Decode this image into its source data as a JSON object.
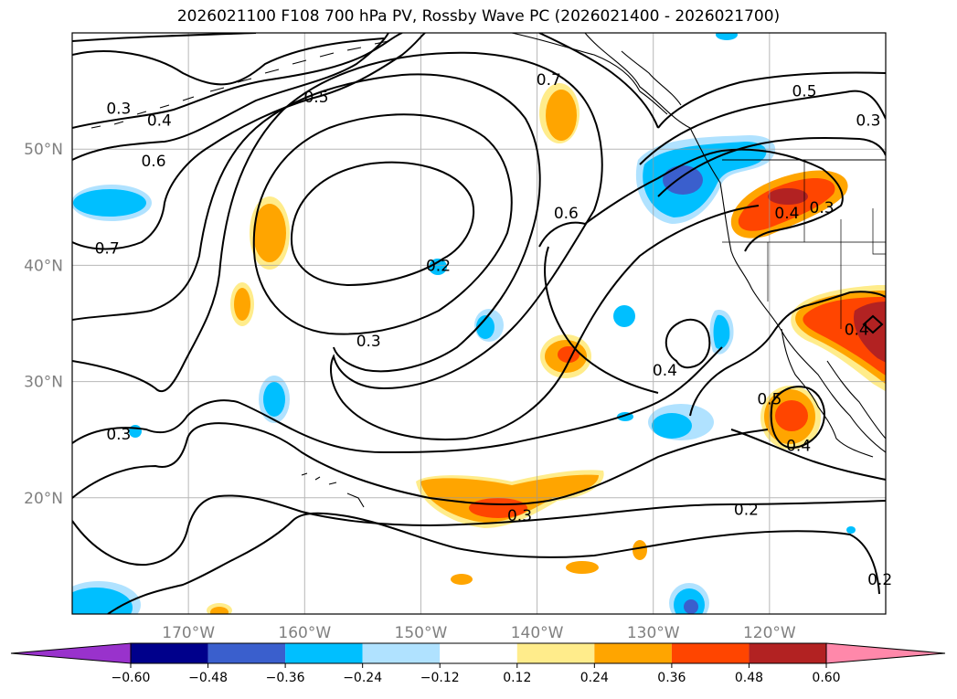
{
  "chart_data": {
    "type": "map",
    "title": "2026021100 F108 700 hPa PV, Rossby Wave PC (2026021400 - 2026021700)",
    "lon_range": [
      -180,
      -110
    ],
    "lat_range": [
      10,
      60
    ],
    "lon_ticks": [
      -170,
      -160,
      -150,
      -140,
      -130,
      -120
    ],
    "lon_tick_labels": [
      "170°W",
      "160°W",
      "150°W",
      "140°W",
      "130°W",
      "120°W"
    ],
    "lat_ticks": [
      20,
      30,
      40,
      50
    ],
    "lat_tick_labels": [
      "20°N",
      "30°N",
      "40°N",
      "50°N"
    ],
    "contour_labels": [
      {
        "text": "0.3",
        "lon": -176.0,
        "lat": 53.5
      },
      {
        "text": "0.4",
        "lon": -172.5,
        "lat": 52.5
      },
      {
        "text": "0.5",
        "lon": -159.0,
        "lat": 54.5
      },
      {
        "text": "0.6",
        "lon": -173.0,
        "lat": 49.0
      },
      {
        "text": "0.7",
        "lon": -177.0,
        "lat": 41.5
      },
      {
        "text": "0.7",
        "lon": -139.0,
        "lat": 56.0
      },
      {
        "text": "0.5",
        "lon": -117.0,
        "lat": 55.0
      },
      {
        "text": "0.3",
        "lon": -111.5,
        "lat": 52.5
      },
      {
        "text": "0.6",
        "lon": -137.5,
        "lat": 44.5
      },
      {
        "text": "0.4",
        "lon": -118.5,
        "lat": 44.5
      },
      {
        "text": "0.3",
        "lon": -115.5,
        "lat": 45.0
      },
      {
        "text": "0.2",
        "lon": -148.5,
        "lat": 40.0
      },
      {
        "text": "0.3",
        "lon": -154.5,
        "lat": 33.5
      },
      {
        "text": "0.4",
        "lon": -129.0,
        "lat": 31.0
      },
      {
        "text": "0.4",
        "lon": -112.5,
        "lat": 34.5
      },
      {
        "text": "0.5",
        "lon": -120.0,
        "lat": 28.5
      },
      {
        "text": "0.4",
        "lon": -117.5,
        "lat": 24.5
      },
      {
        "text": "0.3",
        "lon": -176.0,
        "lat": 25.5
      },
      {
        "text": "0.3",
        "lon": -141.5,
        "lat": 18.5
      },
      {
        "text": "0.2",
        "lon": -122.0,
        "lat": 19.0
      },
      {
        "text": "0.2",
        "lon": -110.5,
        "lat": 13.0
      }
    ],
    "colorbar": {
      "ticks": [
        "−0.60",
        "−0.48",
        "−0.36",
        "−0.24",
        "−0.12",
        "0.12",
        "0.24",
        "0.36",
        "0.48",
        "0.60"
      ],
      "levels": [
        -0.6,
        -0.48,
        -0.36,
        -0.24,
        -0.12,
        0.12,
        0.24,
        0.36,
        0.48,
        0.6
      ],
      "colors": [
        "#9932cc",
        "#00008b",
        "#3a5fcd",
        "#00bfff",
        "#b0e2ff",
        "#ffffff",
        "#ffec8b",
        "#ffa500",
        "#ff4500",
        "#b22222",
        "#ff88aa"
      ]
    }
  }
}
